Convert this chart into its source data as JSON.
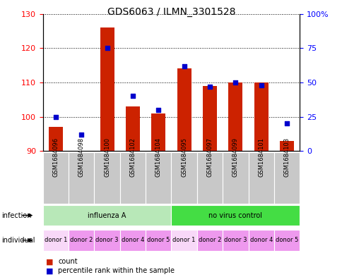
{
  "title": "GDS6063 / ILMN_3301528",
  "samples": [
    "GSM1684096",
    "GSM1684098",
    "GSM1684100",
    "GSM1684102",
    "GSM1684104",
    "GSM1684095",
    "GSM1684097",
    "GSM1684099",
    "GSM1684101",
    "GSM1684103"
  ],
  "counts": [
    97,
    90,
    126,
    103,
    101,
    114,
    109,
    110,
    110,
    93
  ],
  "percentiles": [
    25,
    12,
    75,
    40,
    30,
    62,
    47,
    50,
    48,
    20
  ],
  "ylim_left": [
    90,
    130
  ],
  "ylim_right": [
    0,
    100
  ],
  "yticks_left": [
    90,
    100,
    110,
    120,
    130
  ],
  "yticks_right": [
    0,
    25,
    50,
    75,
    100
  ],
  "infection_groups": [
    {
      "label": "influenza A",
      "start": 0,
      "end": 5,
      "color": "#b8e8b8"
    },
    {
      "label": "no virus control",
      "start": 5,
      "end": 10,
      "color": "#44dd44"
    }
  ],
  "individual_colors_alt": [
    "#f8d8f8",
    "#ee99ee",
    "#ee99ee",
    "#ee99ee",
    "#ee99ee",
    "#f8d8f8",
    "#ee99ee",
    "#ee99ee",
    "#ee99ee",
    "#ee99ee"
  ],
  "individual_labels": [
    "donor 1",
    "donor 2",
    "donor 3",
    "donor 4",
    "donor 5",
    "donor 1",
    "donor 2",
    "donor 3",
    "donor 4",
    "donor 5"
  ],
  "bar_color": "#cc2200",
  "dot_color": "#0000cc",
  "bar_width": 0.55,
  "dot_size": 22,
  "base_value": 90,
  "background_color": "#ffffff",
  "sample_box_color": "#c8c8c8",
  "legend_count_color": "#cc2200",
  "legend_dot_color": "#0000cc",
  "title_fontsize": 10,
  "axis_fontsize": 8,
  "label_fontsize": 7,
  "sample_fontsize": 6,
  "individual_fontsize": 6
}
